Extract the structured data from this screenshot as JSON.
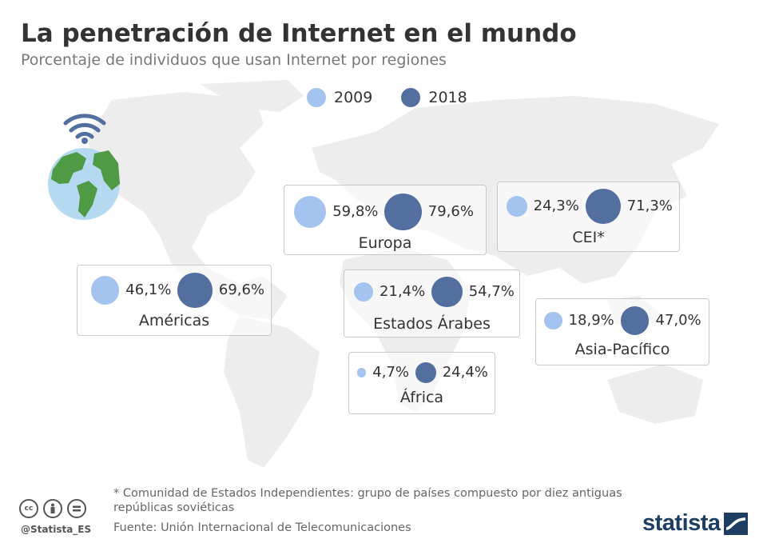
{
  "title": "La penetración de Internet en el mundo",
  "subtitle": "Porcentaje de individuos que usan Internet por regiones",
  "colors": {
    "y2009": "#a4c3ee",
    "y2018": "#536f9f",
    "map": "#ededed"
  },
  "chart_data": {
    "type": "bubble",
    "legend": [
      "2009",
      "2018"
    ],
    "regions": [
      {
        "name": "Europa",
        "v2009": 59.8,
        "v2018": 79.6,
        "label2009": "59,8%",
        "label2018": "79,6%"
      },
      {
        "name": "CEI*",
        "v2009": 24.3,
        "v2018": 71.3,
        "label2009": "24,3%",
        "label2018": "71,3%"
      },
      {
        "name": "Américas",
        "v2009": 46.1,
        "v2018": 69.6,
        "label2009": "46,1%",
        "label2018": "69,6%"
      },
      {
        "name": "Estados Árabes",
        "v2009": 21.4,
        "v2018": 54.7,
        "label2009": "21,4%",
        "label2018": "54,7%"
      },
      {
        "name": "Asia-Pacífico",
        "v2009": 18.9,
        "v2018": 47.0,
        "label2009": "18,9%",
        "label2018": "47,0%"
      },
      {
        "name": "África",
        "v2009": 4.7,
        "v2018": 24.4,
        "label2009": "4,7%",
        "label2018": "24,4%"
      }
    ]
  },
  "footnote": "* Comunidad de Estados Independientes: grupo de países compuesto por diez antiguas repúblicas soviéticas",
  "source": "Fuente: Unión Internacional de Telecomunicaciones",
  "handle": "@Statista_ES",
  "license_icons": [
    "cc-icon",
    "by-icon",
    "nd-icon"
  ],
  "logo": "statista"
}
